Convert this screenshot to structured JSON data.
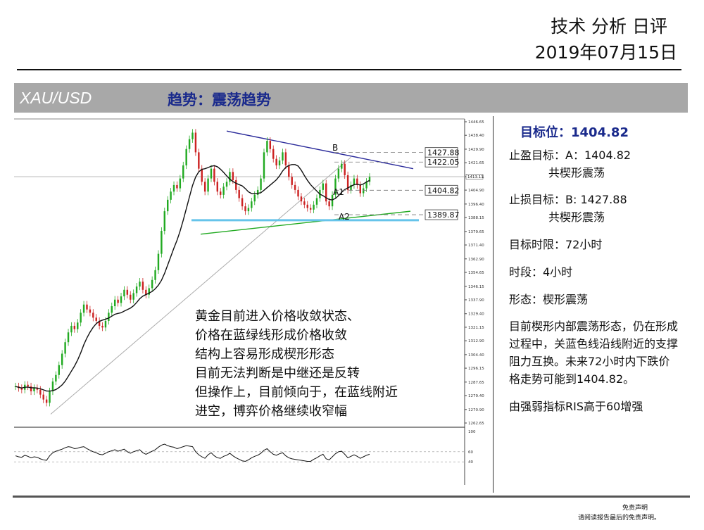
{
  "header": {
    "title": "技术 分析 日评",
    "date": "2019年07月15日"
  },
  "band": {
    "symbol": "XAU/USD",
    "trend": "趋势：震荡趋势"
  },
  "chart_data": {
    "type": "line",
    "title": "",
    "xlabel": "",
    "ylabel": "",
    "ylim": [
      1262.65,
      1446.65
    ],
    "price_ticks": [
      "1446.65",
      "1438.40",
      "1429.90",
      "1421.65",
      "1413.11",
      "1404.90",
      "1396.40",
      "1388.15",
      "1379.65",
      "1371.40",
      "1362.90",
      "1354.65",
      "1346.15",
      "1337.90",
      "1329.40",
      "1321.15",
      "1312.90",
      "1304.40",
      "1296.15",
      "1287.65",
      "1279.40",
      "1270.90",
      "1262.65"
    ],
    "rsi_ticks": [
      "100",
      "60",
      "40"
    ],
    "levels": [
      {
        "name": "1427.88",
        "value": 1427.88
      },
      {
        "name": "1422.05",
        "value": 1422.05
      },
      {
        "name": "1404.82",
        "value": 1404.82
      },
      {
        "name": "1389.87",
        "value": 1389.87
      }
    ],
    "current_price": "1413.11",
    "annotations": [
      "B",
      "A1",
      "A2"
    ],
    "close": [
      1285,
      1284,
      1283,
      1286,
      1285,
      1282,
      1284,
      1283,
      1280,
      1277,
      1275,
      1282,
      1288,
      1292,
      1298,
      1305,
      1312,
      1318,
      1322,
      1320,
      1324,
      1330,
      1335,
      1332,
      1330,
      1327,
      1325,
      1322,
      1321,
      1325,
      1330,
      1334,
      1338,
      1336,
      1340,
      1344,
      1341,
      1338,
      1342,
      1346,
      1349,
      1344,
      1341,
      1345,
      1350,
      1356,
      1366,
      1380,
      1392,
      1399,
      1404,
      1408,
      1406,
      1412,
      1420,
      1430,
      1436,
      1440,
      1428,
      1418,
      1410,
      1404,
      1412,
      1418,
      1410,
      1404,
      1402,
      1407,
      1410,
      1416,
      1411,
      1405,
      1400,
      1395,
      1392,
      1394,
      1398,
      1402,
      1405,
      1412,
      1428,
      1435,
      1430,
      1424,
      1420,
      1423,
      1428,
      1420,
      1413,
      1408,
      1405,
      1401,
      1398,
      1396,
      1394,
      1393,
      1396,
      1400,
      1405,
      1409,
      1398,
      1395,
      1402,
      1412,
      1418,
      1421,
      1414,
      1405,
      1408,
      1412,
      1408,
      1403,
      1406,
      1410,
      1413
    ],
    "rsi": [
      52,
      50,
      49,
      53,
      51,
      48,
      50,
      49,
      46,
      44,
      43,
      52,
      58,
      61,
      63,
      65,
      68,
      70,
      69,
      66,
      67,
      69,
      70,
      66,
      63,
      60,
      58,
      55,
      54,
      57,
      60,
      62,
      64,
      61,
      63,
      65,
      60,
      57,
      60,
      62,
      64,
      58,
      55,
      58,
      61,
      64,
      69,
      73,
      75,
      72,
      70,
      69,
      66,
      68,
      70,
      72,
      71,
      70,
      60,
      54,
      50,
      47,
      54,
      58,
      52,
      48,
      47,
      51,
      53,
      57,
      52,
      48,
      45,
      42,
      41,
      44,
      48,
      51,
      53,
      57,
      63,
      66,
      60,
      55,
      53,
      56,
      58,
      52,
      48,
      46,
      45,
      44,
      43,
      42,
      41,
      41,
      45,
      48,
      52,
      55,
      46,
      44,
      50,
      56,
      60,
      61,
      55,
      48,
      51,
      54,
      51,
      47,
      50,
      53,
      55
    ]
  },
  "annotation": [
    "黄金目前进入价格收敛状态、",
    "价格在蓝绿线形成价格收敛",
    "结构上容易形成楔形形态",
    "目前无法判断是中继还是反转",
    "但操作上，目前倾向于，在蓝线附近",
    "进空，博弈价格继续收窄幅"
  ],
  "panel": {
    "target_label": "目标位：",
    "target_value": "1404.82",
    "tp_line1": "止盈目标：A：1404.82",
    "tp_line2": "共楔形震荡",
    "sl_line1": "止损目标：B: 1427.88",
    "sl_line2": "共楔形震荡",
    "time_limit": "目标时限：72小时",
    "period": "时段：4小时",
    "pattern": "形态：楔形震荡",
    "desc": "目前楔形内部震荡形态，仍在形成过程中，关蓝色线沿线附近的支撑阻力互换。未来72小时内下跌价格走势可能到1404.82。",
    "rsi_note": "由强弱指标RIS高于60增强"
  },
  "disclaimer": {
    "title": "免责声明",
    "text": "请阅读报告最后的免责声明。"
  },
  "colors": {
    "up": "#22aa22",
    "down": "#cc2222",
    "resistance": "#2a2a9a",
    "support": "#22aa22",
    "horizontal": "#66c4ea",
    "ma": "#111111"
  }
}
